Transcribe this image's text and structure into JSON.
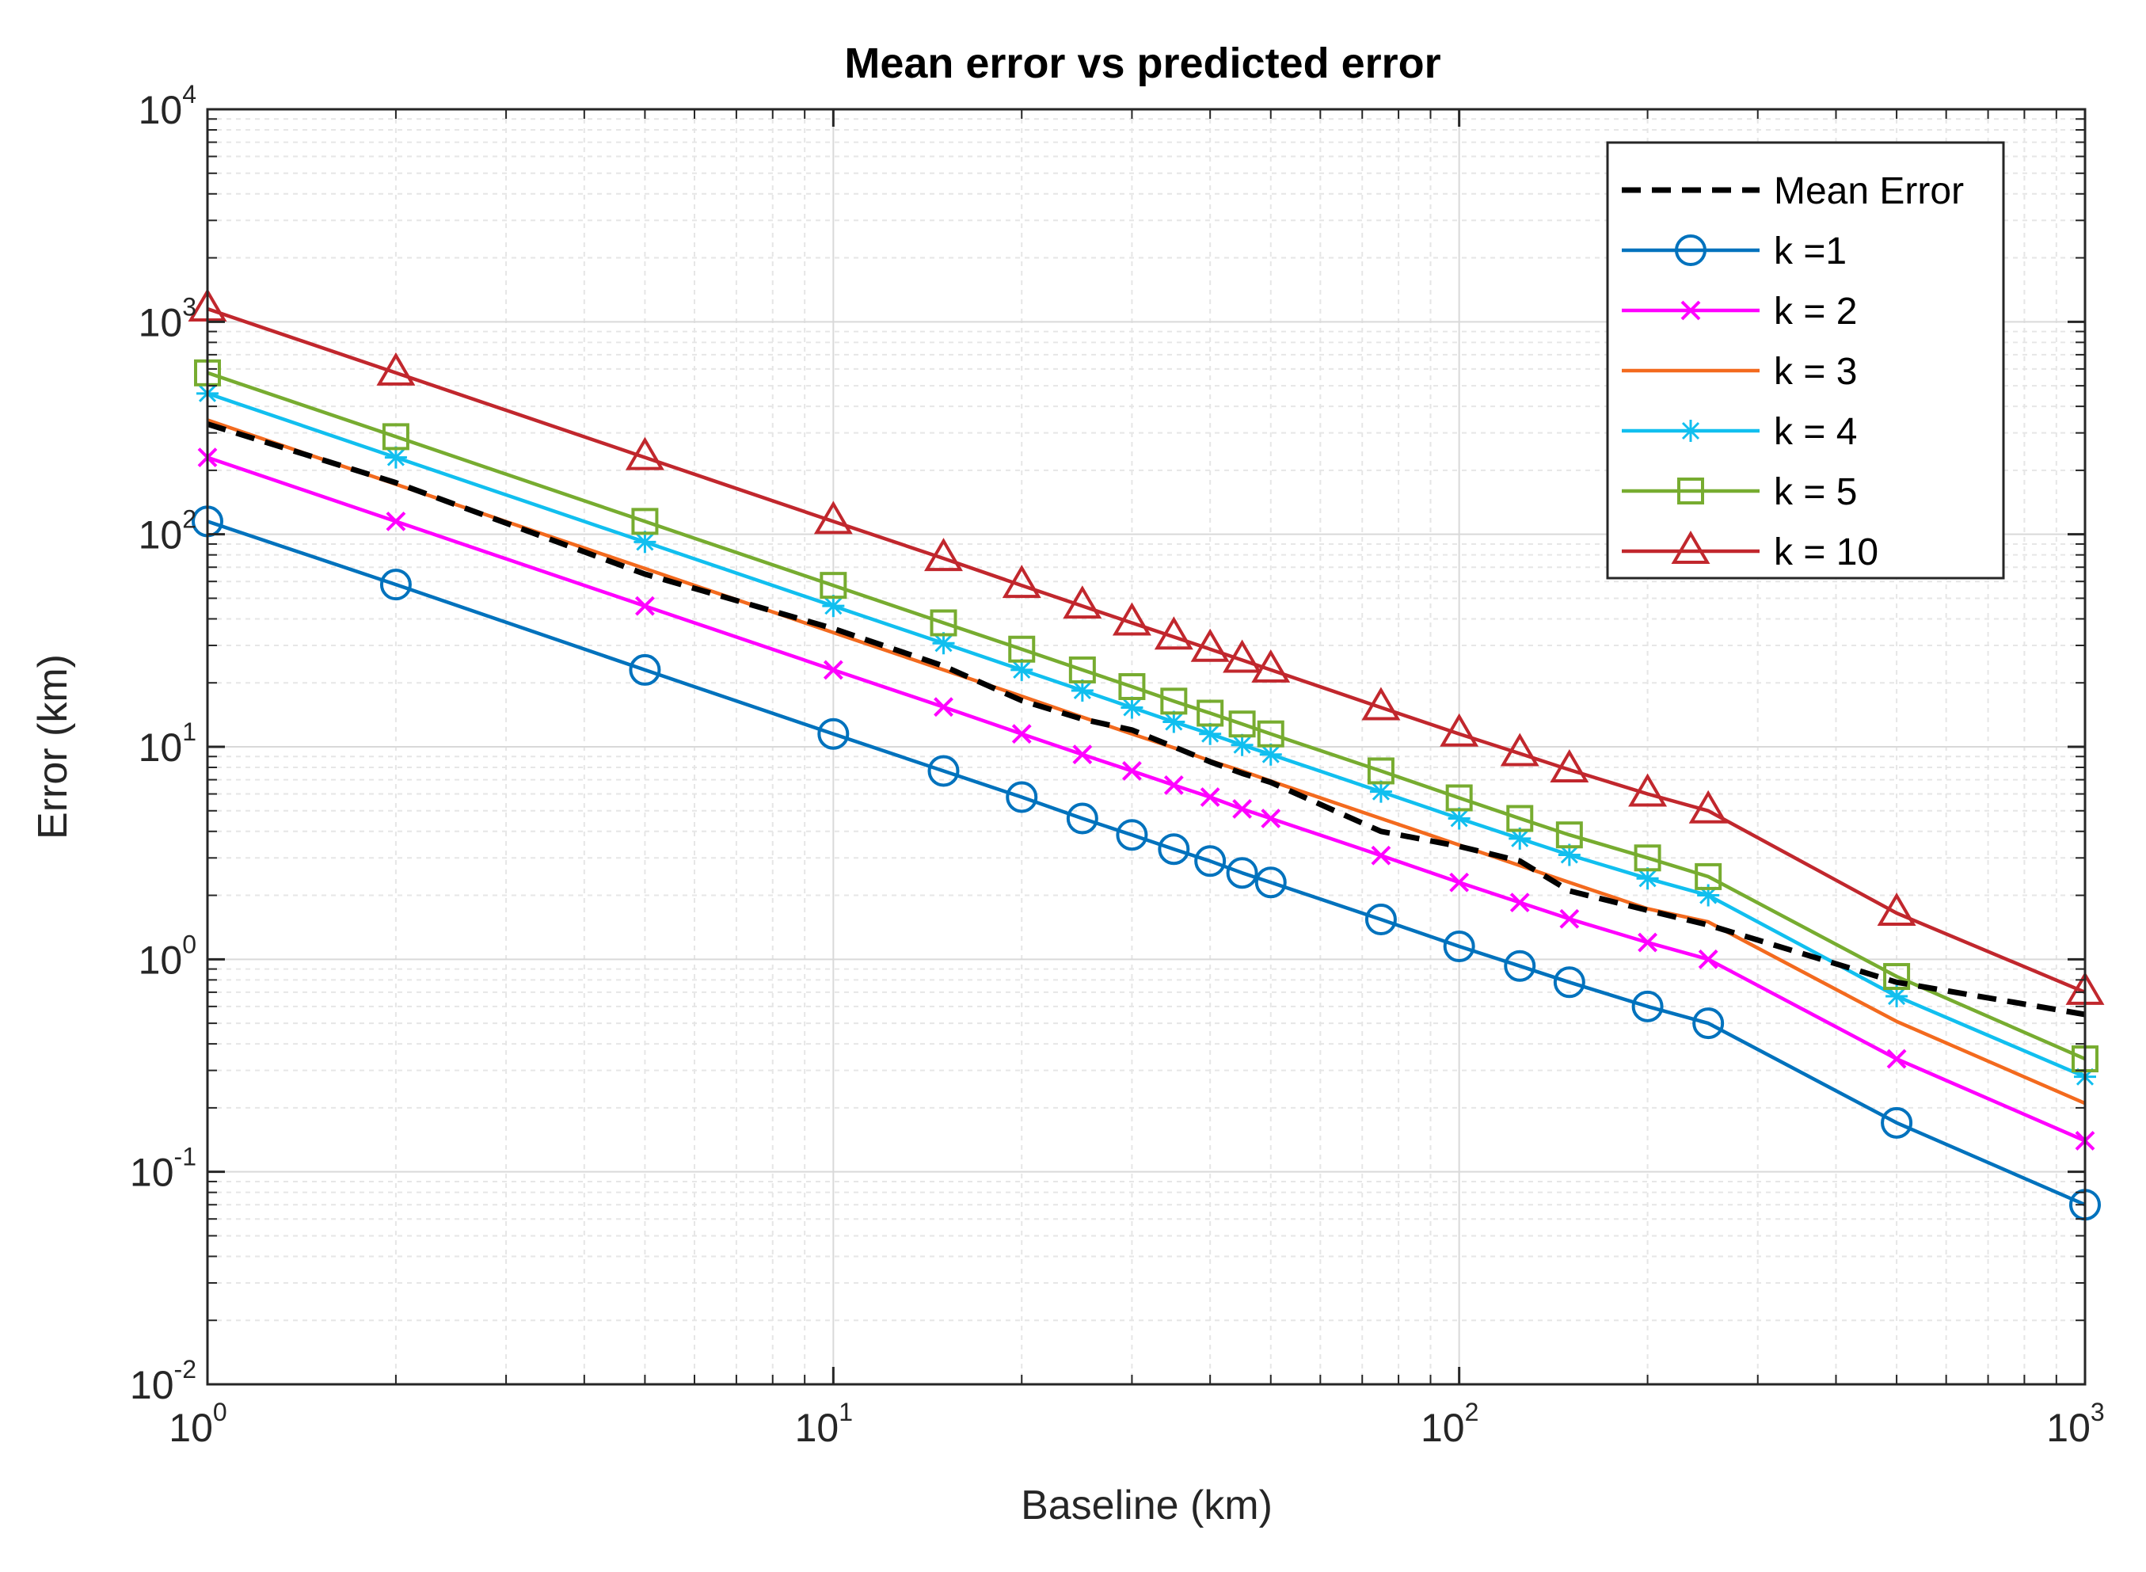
{
  "chart_data": {
    "type": "line",
    "title": "Mean error vs predicted error",
    "xlabel": "Baseline (km)",
    "ylabel": "Error (km)",
    "xscale": "log",
    "yscale": "log",
    "xlim": [
      1,
      1000
    ],
    "ylim": [
      0.01,
      10000
    ],
    "grid": true,
    "minor_grid": true,
    "legend_position": "top-right",
    "x_ticks": [
      {
        "base": "10",
        "exp": "0",
        "value": 1
      },
      {
        "base": "10",
        "exp": "1",
        "value": 10
      },
      {
        "base": "10",
        "exp": "2",
        "value": 100
      },
      {
        "base": "10",
        "exp": "3",
        "value": 1000
      }
    ],
    "y_ticks": [
      {
        "base": "10",
        "exp": "-2",
        "value": 0.01
      },
      {
        "base": "10",
        "exp": "-1",
        "value": 0.1
      },
      {
        "base": "10",
        "exp": "0",
        "value": 1
      },
      {
        "base": "10",
        "exp": "1",
        "value": 10
      },
      {
        "base": "10",
        "exp": "2",
        "value": 100
      },
      {
        "base": "10",
        "exp": "3",
        "value": 1000
      },
      {
        "base": "10",
        "exp": "4",
        "value": 10000
      }
    ],
    "x": [
      1,
      2,
      5,
      10,
      15,
      20,
      25,
      30,
      35,
      40,
      45,
      50,
      75,
      100,
      125,
      150,
      200,
      250,
      500,
      1000
    ],
    "series": [
      {
        "name": "Mean Error",
        "color": "#000000",
        "style": "dashed",
        "marker": "none",
        "values": [
          330,
          175,
          65,
          36,
          24,
          16.5,
          13.5,
          12,
          10,
          8.5,
          7.5,
          6.8,
          4.0,
          3.4,
          2.9,
          2.1,
          1.7,
          1.45,
          0.78,
          0.55
        ]
      },
      {
        "name": "k =1",
        "color": "#0072BD",
        "style": "solid",
        "marker": "circle",
        "values": [
          115,
          58,
          23,
          11.5,
          7.7,
          5.8,
          4.6,
          3.85,
          3.3,
          2.9,
          2.55,
          2.3,
          1.54,
          1.15,
          0.93,
          0.78,
          0.6,
          0.5,
          0.17,
          0.07
        ]
      },
      {
        "name": "k = 2",
        "color": "#FF00FF",
        "style": "solid",
        "marker": "x",
        "values": [
          230,
          115,
          46,
          23,
          15.4,
          11.5,
          9.2,
          7.7,
          6.6,
          5.8,
          5.1,
          4.6,
          3.08,
          2.3,
          1.85,
          1.55,
          1.2,
          1.0,
          0.34,
          0.14
        ]
      },
      {
        "name": "k = 3",
        "color": "#F36A1E",
        "style": "solid",
        "marker": "none",
        "values": [
          345,
          172,
          69,
          34.5,
          23,
          17.3,
          13.8,
          11.5,
          9.9,
          8.6,
          7.7,
          6.9,
          4.6,
          3.45,
          2.76,
          2.3,
          1.73,
          1.5,
          0.51,
          0.21
        ]
      },
      {
        "name": "k = 4",
        "color": "#11BFEF",
        "style": "solid",
        "marker": "star",
        "values": [
          460,
          230,
          92,
          46,
          30.7,
          23,
          18.4,
          15.3,
          13.1,
          11.5,
          10.2,
          9.2,
          6.15,
          4.6,
          3.7,
          3.1,
          2.4,
          2.0,
          0.67,
          0.28
        ]
      },
      {
        "name": "k = 5",
        "color": "#77AC30",
        "style": "solid",
        "marker": "square",
        "values": [
          575,
          288,
          115,
          57.5,
          38.3,
          28.8,
          23,
          19.2,
          16.4,
          14.4,
          12.8,
          11.5,
          7.7,
          5.75,
          4.6,
          3.85,
          3.0,
          2.45,
          0.83,
          0.34
        ]
      },
      {
        "name": "k = 10",
        "color": "#C1272D",
        "style": "solid",
        "marker": "triangle",
        "values": [
          1150,
          575,
          230,
          115,
          77,
          57.5,
          46,
          38.3,
          32.9,
          28.8,
          25.6,
          23,
          15.3,
          11.5,
          9.3,
          7.8,
          6.0,
          5.0,
          1.65,
          0.7
        ]
      }
    ]
  }
}
